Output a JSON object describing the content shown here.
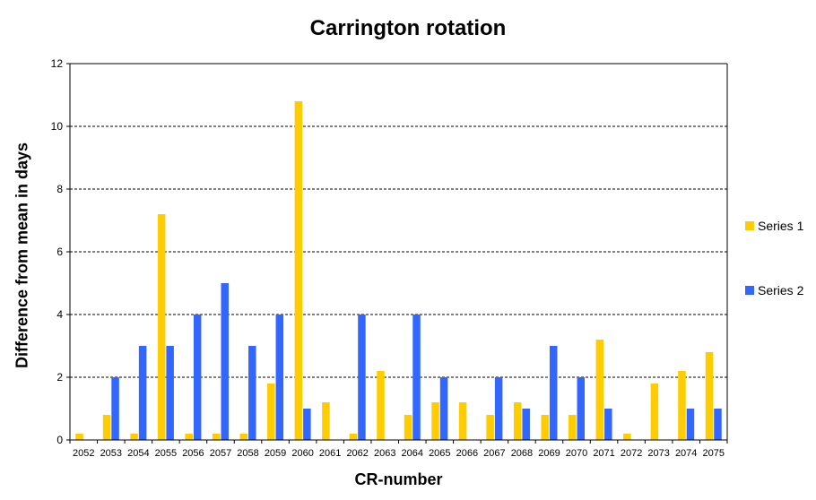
{
  "chart_data": {
    "type": "bar",
    "title": "Carrington rotation",
    "xlabel": "CR-number",
    "ylabel": "Difference from mean in days",
    "ylim": [
      0,
      12
    ],
    "yticks": [
      0,
      2,
      4,
      6,
      8,
      10,
      12
    ],
    "grid": "horizontal dashed",
    "legend_position": "right",
    "categories": [
      "2052",
      "2053",
      "2054",
      "2055",
      "2056",
      "2057",
      "2058",
      "2059",
      "2060",
      "2061",
      "2062",
      "2063",
      "2064",
      "2065",
      "2066",
      "2067",
      "2068",
      "2069",
      "2070",
      "2071",
      "2072",
      "2073",
      "2074",
      "2075"
    ],
    "series": [
      {
        "name": "Series 1",
        "color": "#ffcc00",
        "values": [
          0.2,
          0.8,
          0.2,
          7.2,
          0.2,
          0.2,
          0.2,
          1.8,
          10.8,
          1.2,
          0.2,
          2.2,
          0.8,
          1.2,
          1.2,
          0.8,
          1.2,
          0.8,
          0.8,
          3.2,
          0.2,
          1.8,
          2.2,
          2.8
        ]
      },
      {
        "name": "Series 2",
        "color": "#3366ff",
        "values": [
          0,
          2,
          3,
          3,
          4,
          5,
          3,
          4,
          1,
          0,
          4,
          0,
          4,
          2,
          0,
          2,
          1,
          3,
          2,
          1,
          0,
          0,
          1,
          1
        ]
      }
    ]
  }
}
